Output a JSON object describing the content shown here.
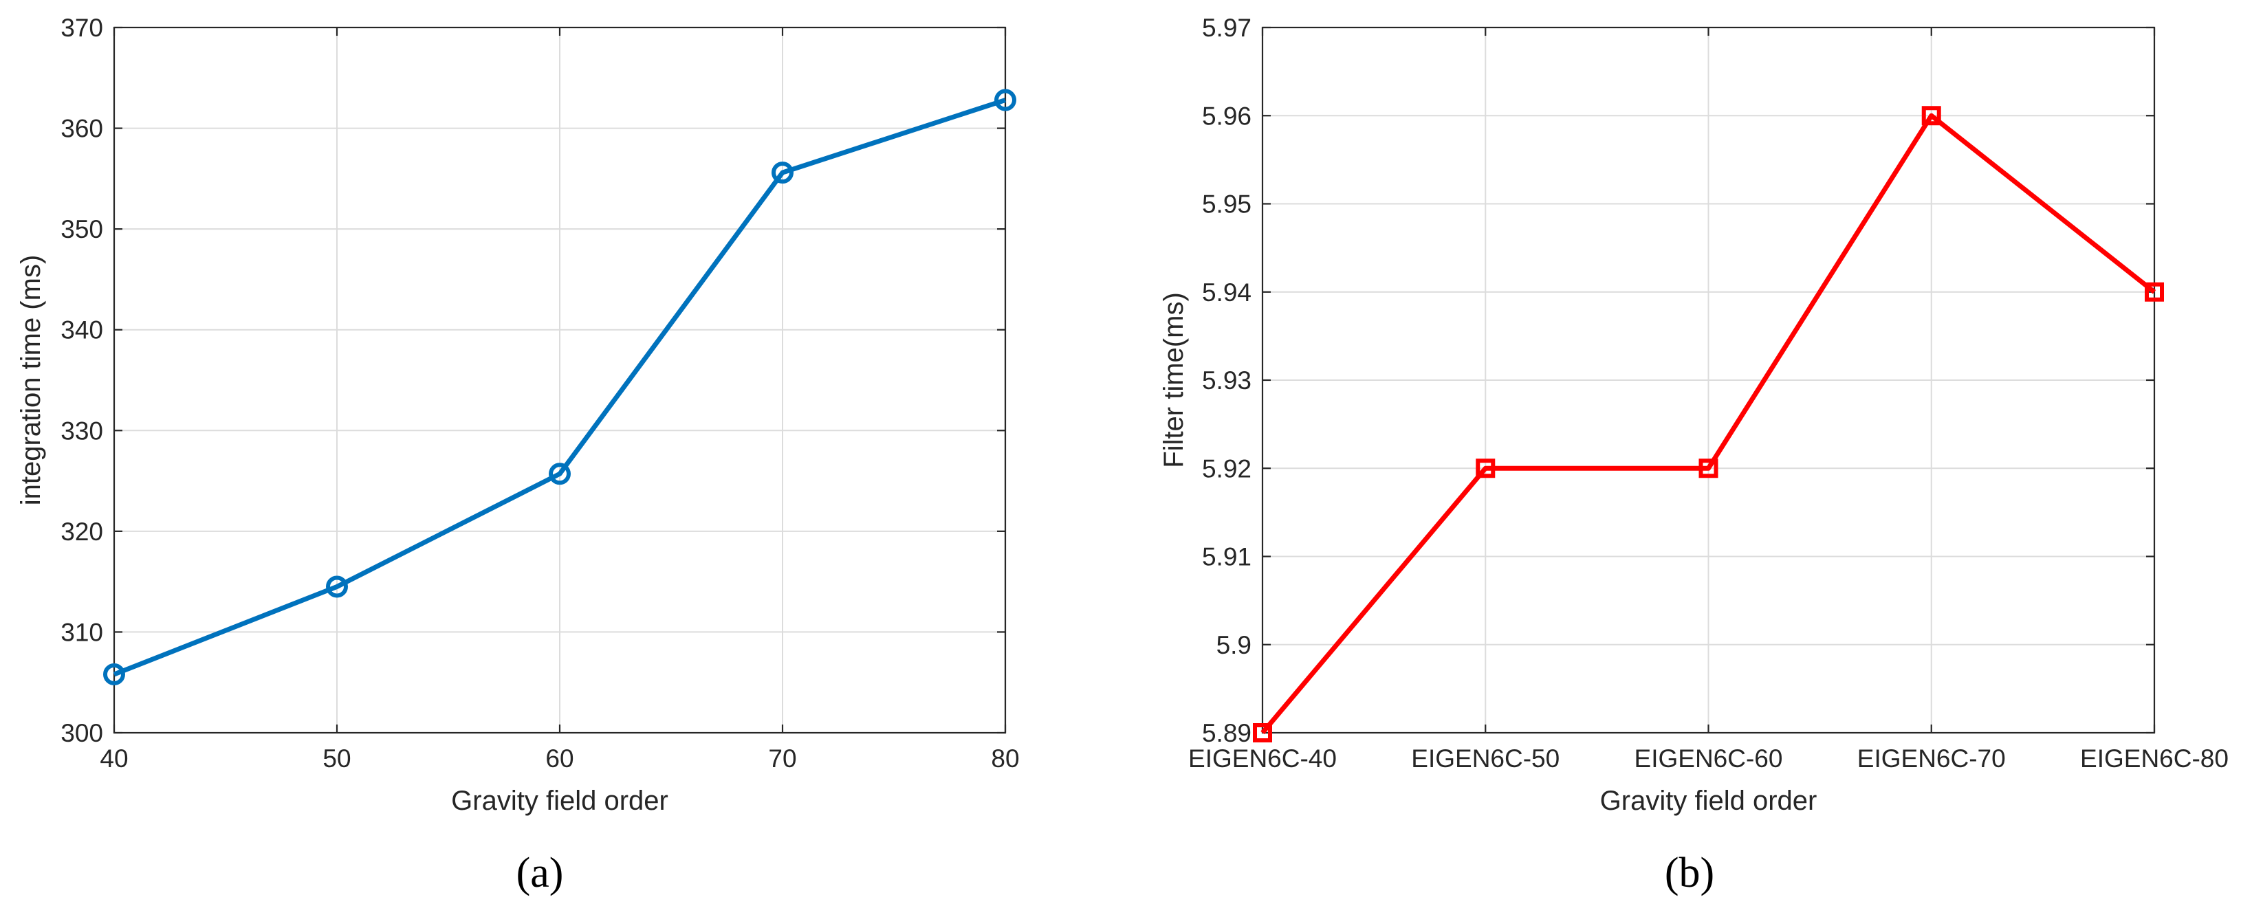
{
  "chart_data": [
    {
      "id": "a",
      "type": "line",
      "panel_label": "(a)",
      "xlabel": "Gravity field order",
      "ylabel": "integration time (ms)",
      "x": [
        40,
        50,
        60,
        70,
        80
      ],
      "xticks": [
        "40",
        "50",
        "60",
        "70",
        "80"
      ],
      "xlim": [
        40,
        80
      ],
      "ylim": [
        300,
        370
      ],
      "yticks": [
        300,
        310,
        320,
        330,
        340,
        350,
        360,
        370
      ],
      "ytick_labels": [
        "300",
        "310",
        "320",
        "330",
        "340",
        "350",
        "360",
        "370"
      ],
      "grid": true,
      "series": [
        {
          "values": [
            305.8,
            314.5,
            325.7,
            355.6,
            362.8
          ],
          "color": "#0072BD",
          "marker": "circle"
        }
      ]
    },
    {
      "id": "b",
      "type": "line",
      "panel_label": "(b)",
      "xlabel": "Gravity field order",
      "ylabel": "Filter time(ms)",
      "categories": [
        "EIGEN6C-40",
        "EIGEN6C-50",
        "EIGEN6C-60",
        "EIGEN6C-70",
        "EIGEN6C-80"
      ],
      "ylim": [
        5.89,
        5.97
      ],
      "yticks": [
        5.89,
        5.9,
        5.91,
        5.92,
        5.93,
        5.94,
        5.95,
        5.96,
        5.97
      ],
      "ytick_labels": [
        "5.89",
        "5.9",
        "5.91",
        "5.92",
        "5.93",
        "5.94",
        "5.95",
        "5.96",
        "5.97"
      ],
      "grid": true,
      "series": [
        {
          "values": [
            5.89,
            5.92,
            5.92,
            5.96,
            5.94
          ],
          "color": "#FF0000",
          "marker": "square"
        }
      ]
    }
  ]
}
